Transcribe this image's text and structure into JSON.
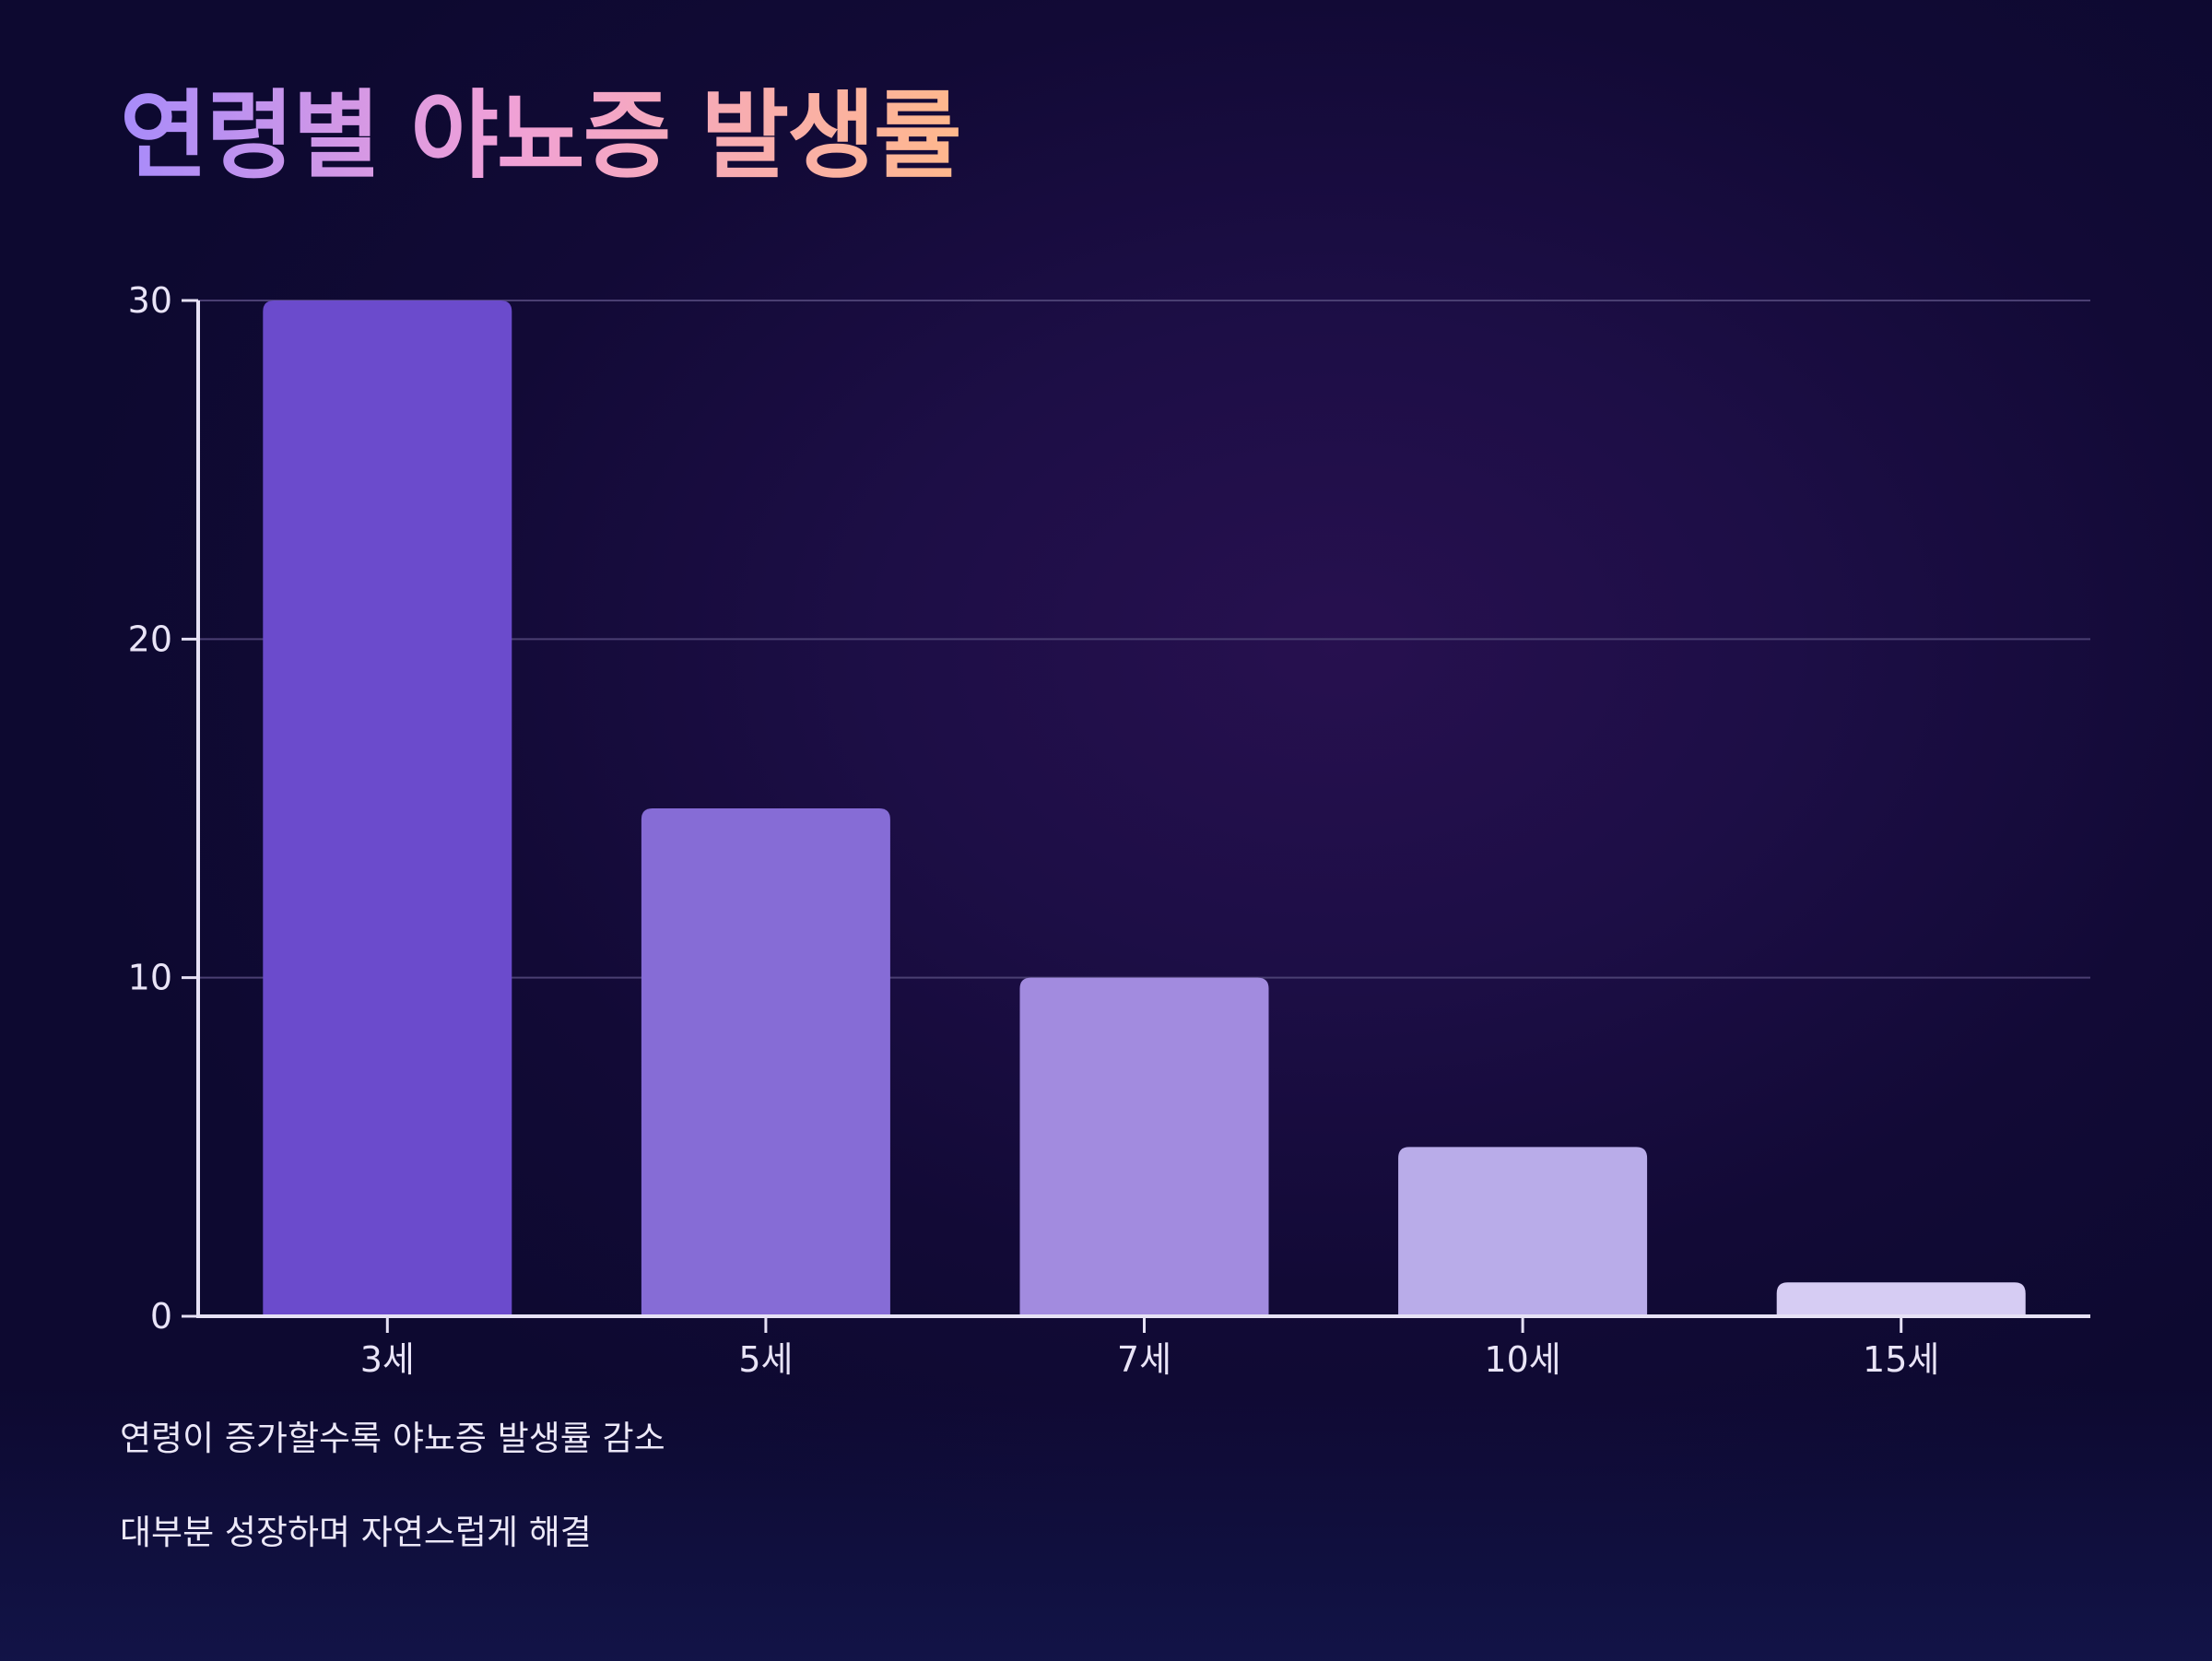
{
  "title": "연령별 야뇨증 발생률",
  "notes": [
    "연령이 증가할수록 야뇨증 발생률 감소",
    "대부분 성장하며 자연스럽게 해결"
  ],
  "chart_data": {
    "type": "bar",
    "title": "연령별 야뇨증 발생률",
    "xlabel": "",
    "ylabel": "",
    "categories": [
      "3세",
      "5세",
      "7세",
      "10세",
      "15세"
    ],
    "values": [
      30,
      15,
      10,
      5,
      1
    ],
    "ylim": [
      0,
      30
    ],
    "yticks": [
      0,
      10,
      20,
      30
    ],
    "grid": true,
    "legend": "none",
    "bar_colors": [
      "#6b4bcc",
      "#866cd6",
      "#a28bdf",
      "#b9ace9",
      "#d6ccf3"
    ],
    "gridline_color": "#4a3f72",
    "axis_color": "#e6e1f5"
  }
}
